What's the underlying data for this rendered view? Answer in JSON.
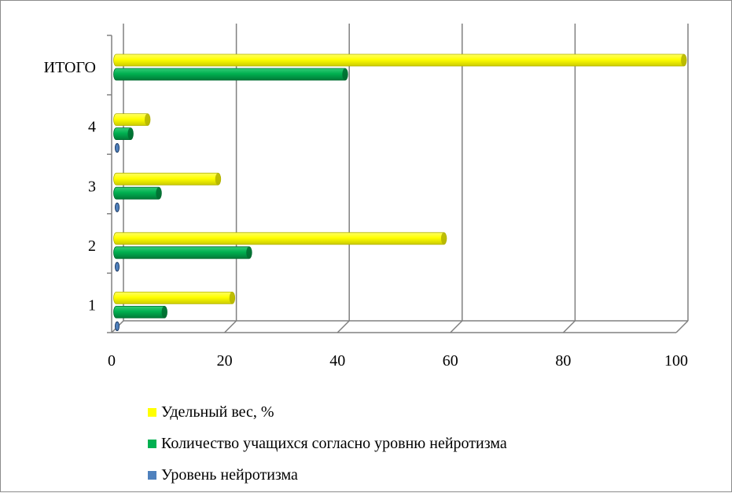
{
  "chart_data": {
    "type": "bar",
    "orientation": "horizontal",
    "categories": [
      "1",
      "2",
      "3",
      "4",
      "ИТОГО"
    ],
    "series": [
      {
        "name": "Удельный вес, %",
        "color": "#ffff00",
        "values": [
          20.5,
          58,
          18,
          5.5,
          100.5
        ]
      },
      {
        "name": "Количество учащихся согласно уровню нейротизма",
        "color": "#00b050",
        "values": [
          8.5,
          23.5,
          7.5,
          2.5,
          40.5
        ]
      },
      {
        "name": "Уровень нейротизма",
        "color": "#4f81bd",
        "values": [
          0.3,
          0.3,
          0.3,
          0.3,
          0
        ]
      }
    ],
    "x_ticks": [
      "0",
      "20",
      "40",
      "60",
      "80",
      "100"
    ],
    "xlim": [
      0,
      100
    ],
    "grid": true,
    "legend_position": "bottom"
  }
}
